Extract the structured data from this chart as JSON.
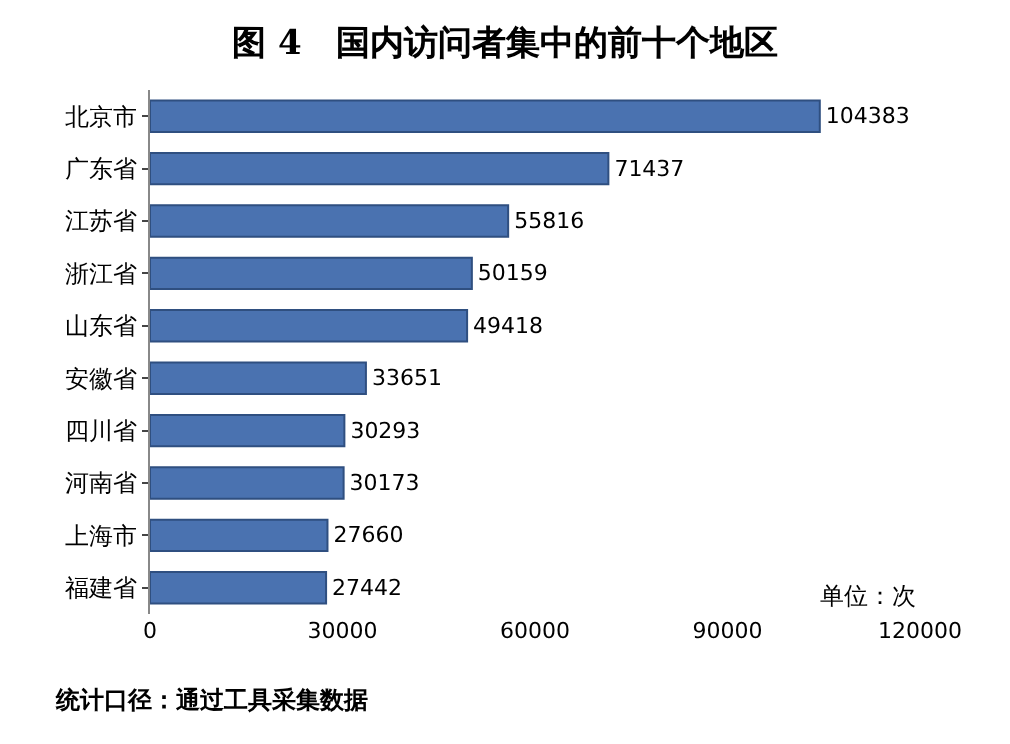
{
  "chart_data": {
    "type": "bar",
    "orientation": "horizontal",
    "title": "图 4　国内访问者集中的前十个地区",
    "categories": [
      "北京市",
      "广东省",
      "江苏省",
      "浙江省",
      "山东省",
      "安徽省",
      "四川省",
      "河南省",
      "上海市",
      "福建省"
    ],
    "values": [
      104383,
      71437,
      55816,
      50159,
      49418,
      33651,
      30293,
      30173,
      27660,
      27442
    ],
    "color": "#4a72b0",
    "data_labels": true,
    "xlim": [
      0,
      120000
    ],
    "xticks": [
      0,
      30000,
      60000,
      90000,
      120000
    ],
    "annotations": [
      "单位：次",
      "统计口径：通过工具采集数据"
    ]
  }
}
